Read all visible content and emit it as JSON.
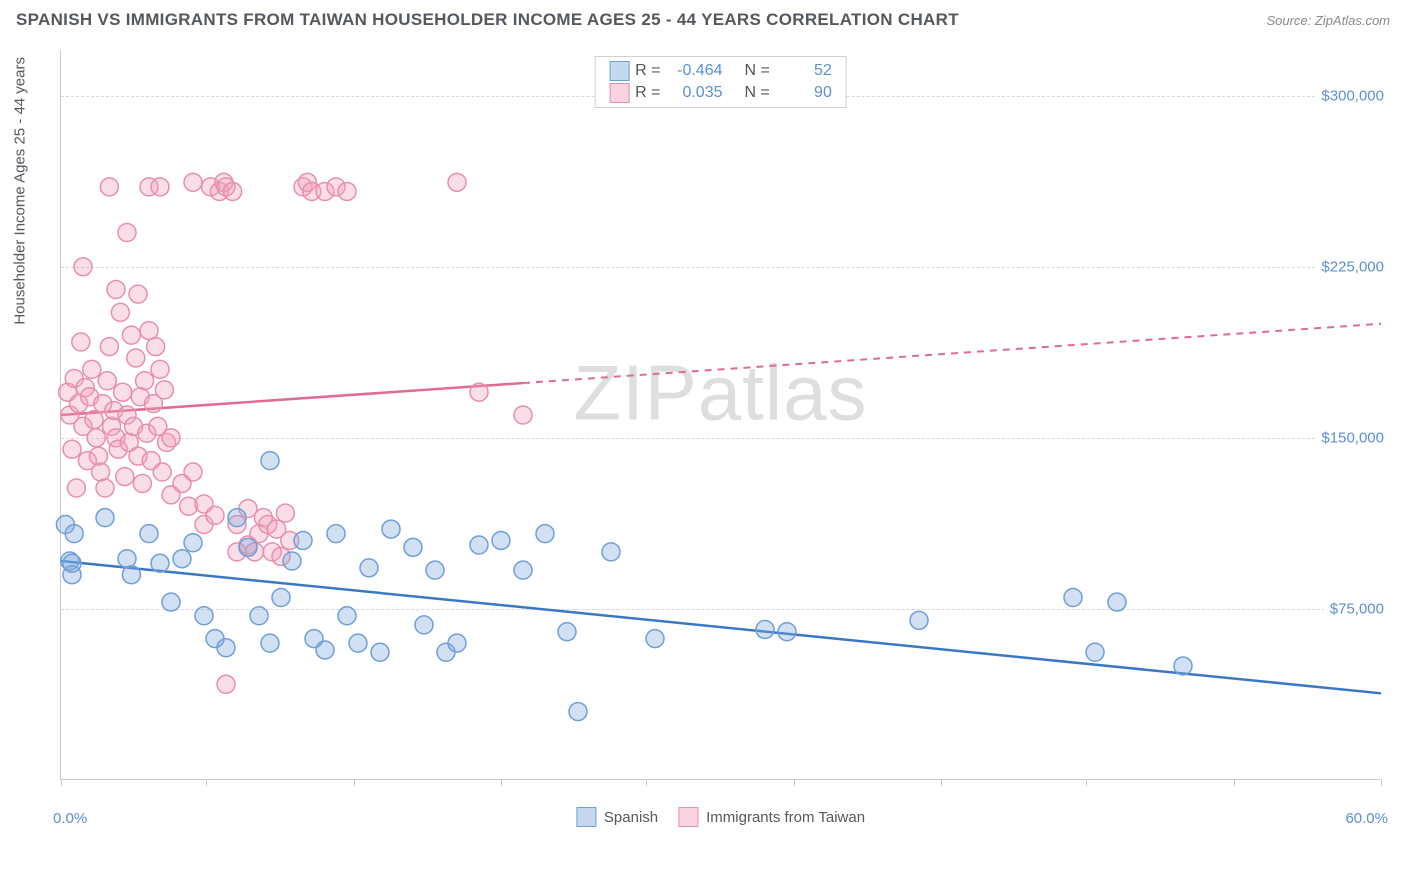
{
  "header": {
    "title": "SPANISH VS IMMIGRANTS FROM TAIWAN HOUSEHOLDER INCOME AGES 25 - 44 YEARS CORRELATION CHART",
    "source": "Source: ZipAtlas.com"
  },
  "chart": {
    "type": "scatter",
    "y_axis_label": "Householder Income Ages 25 - 44 years",
    "watermark": "ZIPatlas",
    "xlim": [
      0,
      60
    ],
    "ylim": [
      0,
      320000
    ],
    "x_min_label": "0.0%",
    "x_max_label": "60.0%",
    "x_ticks": [
      0,
      6.6,
      13.3,
      20,
      26.6,
      33.3,
      40,
      46.6,
      53.3,
      60
    ],
    "y_ticks": [
      {
        "v": 75000,
        "label": "$75,000"
      },
      {
        "v": 150000,
        "label": "$150,000"
      },
      {
        "v": 225000,
        "label": "$225,000"
      },
      {
        "v": 300000,
        "label": "$300,000"
      }
    ],
    "grid_color": "#d8d8d8",
    "background_color": "#ffffff",
    "label_color": "#5b8fd6",
    "series": [
      {
        "name": "Spanish",
        "color_fill": "rgba(124,169,222,0.35)",
        "color_stroke": "#6f9fd8",
        "trend_color": "#3b78c4",
        "r": -0.464,
        "n": 52,
        "marker_radius": 9,
        "trend": {
          "x1": 0,
          "y1": 96000,
          "x2": 60,
          "y2": 38000,
          "dash_from_x": 60
        },
        "points": [
          [
            0.2,
            112000
          ],
          [
            0.4,
            96000
          ],
          [
            0.5,
            90000
          ],
          [
            0.5,
            95000
          ],
          [
            0.6,
            108000
          ],
          [
            2,
            115000
          ],
          [
            3,
            97000
          ],
          [
            3.2,
            90000
          ],
          [
            4,
            108000
          ],
          [
            4.5,
            95000
          ],
          [
            5,
            78000
          ],
          [
            5.5,
            97000
          ],
          [
            6,
            104000
          ],
          [
            6.5,
            72000
          ],
          [
            7,
            62000
          ],
          [
            7.5,
            58000
          ],
          [
            8,
            115000
          ],
          [
            8.5,
            102000
          ],
          [
            9,
            72000
          ],
          [
            9.5,
            60000
          ],
          [
            9.5,
            140000
          ],
          [
            10,
            80000
          ],
          [
            10.5,
            96000
          ],
          [
            11,
            105000
          ],
          [
            11.5,
            62000
          ],
          [
            12,
            57000
          ],
          [
            12.5,
            108000
          ],
          [
            13,
            72000
          ],
          [
            13.5,
            60000
          ],
          [
            14,
            93000
          ],
          [
            14.5,
            56000
          ],
          [
            15,
            110000
          ],
          [
            16,
            102000
          ],
          [
            16.5,
            68000
          ],
          [
            17,
            92000
          ],
          [
            17.5,
            56000
          ],
          [
            18,
            60000
          ],
          [
            19,
            103000
          ],
          [
            20,
            105000
          ],
          [
            21,
            92000
          ],
          [
            22,
            108000
          ],
          [
            23,
            65000
          ],
          [
            23.5,
            30000
          ],
          [
            25,
            100000
          ],
          [
            27,
            62000
          ],
          [
            32,
            66000
          ],
          [
            33,
            65000
          ],
          [
            39,
            70000
          ],
          [
            46,
            80000
          ],
          [
            47,
            56000
          ],
          [
            48,
            78000
          ],
          [
            51,
            50000
          ]
        ]
      },
      {
        "name": "Immigrants from Taiwan",
        "color_fill": "rgba(242,160,185,0.35)",
        "color_stroke": "#e88fad",
        "trend_color": "#e06b93",
        "r": 0.035,
        "n": 90,
        "marker_radius": 9,
        "trend": {
          "x1": 0,
          "y1": 160000,
          "x2": 60,
          "y2": 200000,
          "dash_from_x": 21
        },
        "points": [
          [
            0.3,
            170000
          ],
          [
            0.4,
            160000
          ],
          [
            0.5,
            145000
          ],
          [
            0.6,
            176000
          ],
          [
            0.7,
            128000
          ],
          [
            0.8,
            165000
          ],
          [
            0.9,
            192000
          ],
          [
            1,
            155000
          ],
          [
            1.1,
            172000
          ],
          [
            1.2,
            140000
          ],
          [
            1,
            225000
          ],
          [
            1.3,
            168000
          ],
          [
            1.4,
            180000
          ],
          [
            1.5,
            158000
          ],
          [
            1.6,
            150000
          ],
          [
            1.7,
            142000
          ],
          [
            1.8,
            135000
          ],
          [
            1.9,
            165000
          ],
          [
            2,
            128000
          ],
          [
            2.1,
            175000
          ],
          [
            2.2,
            190000
          ],
          [
            2.2,
            260000
          ],
          [
            2.3,
            155000
          ],
          [
            2.4,
            162000
          ],
          [
            2.5,
            150000
          ],
          [
            2.5,
            215000
          ],
          [
            2.6,
            145000
          ],
          [
            2.7,
            205000
          ],
          [
            2.8,
            170000
          ],
          [
            2.9,
            133000
          ],
          [
            3,
            160000
          ],
          [
            3,
            240000
          ],
          [
            3.1,
            148000
          ],
          [
            3.2,
            195000
          ],
          [
            3.3,
            155000
          ],
          [
            3.4,
            185000
          ],
          [
            3.5,
            142000
          ],
          [
            3.5,
            213000
          ],
          [
            3.6,
            168000
          ],
          [
            3.7,
            130000
          ],
          [
            3.8,
            175000
          ],
          [
            3.9,
            152000
          ],
          [
            4,
            197000
          ],
          [
            4,
            260000
          ],
          [
            4.1,
            140000
          ],
          [
            4.2,
            165000
          ],
          [
            4.3,
            190000
          ],
          [
            4.4,
            155000
          ],
          [
            4.5,
            180000
          ],
          [
            4.5,
            260000
          ],
          [
            4.6,
            135000
          ],
          [
            4.7,
            171000
          ],
          [
            4.8,
            148000
          ],
          [
            5,
            125000
          ],
          [
            5,
            150000
          ],
          [
            5.5,
            130000
          ],
          [
            5.8,
            120000
          ],
          [
            6,
            262000
          ],
          [
            6,
            135000
          ],
          [
            6.5,
            121000
          ],
          [
            6.5,
            112000
          ],
          [
            6.8,
            260000
          ],
          [
            7,
            116000
          ],
          [
            7.2,
            258000
          ],
          [
            7.4,
            262000
          ],
          [
            7.5,
            260000
          ],
          [
            7.8,
            258000
          ],
          [
            8,
            100000
          ],
          [
            8,
            112000
          ],
          [
            8.5,
            119000
          ],
          [
            8.5,
            103000
          ],
          [
            8.8,
            100000
          ],
          [
            9,
            108000
          ],
          [
            9.2,
            115000
          ],
          [
            9.4,
            112000
          ],
          [
            9.6,
            100000
          ],
          [
            9.8,
            110000
          ],
          [
            10,
            98000
          ],
          [
            10.2,
            117000
          ],
          [
            10.4,
            105000
          ],
          [
            7.5,
            42000
          ],
          [
            11,
            260000
          ],
          [
            11.2,
            262000
          ],
          [
            11.4,
            258000
          ],
          [
            12,
            258000
          ],
          [
            12.5,
            260000
          ],
          [
            13,
            258000
          ],
          [
            18,
            262000
          ],
          [
            19,
            170000
          ],
          [
            21,
            160000
          ]
        ]
      }
    ],
    "legend_top": {
      "r_label": "R =",
      "n_label": "N ="
    },
    "legend_bottom": [
      {
        "label": "Spanish",
        "fill": "rgba(124,169,222,0.45)",
        "stroke": "#6f9fd8"
      },
      {
        "label": "Immigrants from Taiwan",
        "fill": "rgba(242,160,185,0.45)",
        "stroke": "#e88fad"
      }
    ]
  }
}
